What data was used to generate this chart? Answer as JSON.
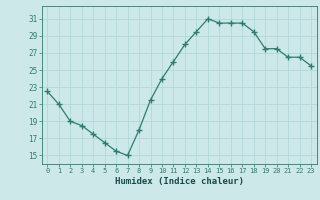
{
  "x": [
    0,
    1,
    2,
    3,
    4,
    5,
    6,
    7,
    8,
    9,
    10,
    11,
    12,
    13,
    14,
    15,
    16,
    17,
    18,
    19,
    20,
    21,
    22,
    23
  ],
  "y": [
    22.5,
    21.0,
    19.0,
    18.5,
    17.5,
    16.5,
    15.5,
    15.0,
    18.0,
    21.5,
    24.0,
    26.0,
    28.0,
    29.5,
    31.0,
    30.5,
    30.5,
    30.5,
    29.5,
    27.5,
    27.5,
    26.5,
    26.5,
    25.5
  ],
  "xlabel": "Humidex (Indice chaleur)",
  "ylim": [
    14.0,
    32.5
  ],
  "xlim": [
    -0.5,
    23.5
  ],
  "yticks": [
    15,
    17,
    19,
    21,
    23,
    25,
    27,
    29,
    31
  ],
  "xticks": [
    0,
    1,
    2,
    3,
    4,
    5,
    6,
    7,
    8,
    9,
    10,
    11,
    12,
    13,
    14,
    15,
    16,
    17,
    18,
    19,
    20,
    21,
    22,
    23
  ],
  "line_color": "#2e7d6e",
  "marker_color": "#2e7d6e",
  "bg_color": "#cce8e8",
  "grid_color": "#b0d8d8",
  "xlabel_color": "#1a4a4a",
  "tick_color": "#2e7d6e"
}
